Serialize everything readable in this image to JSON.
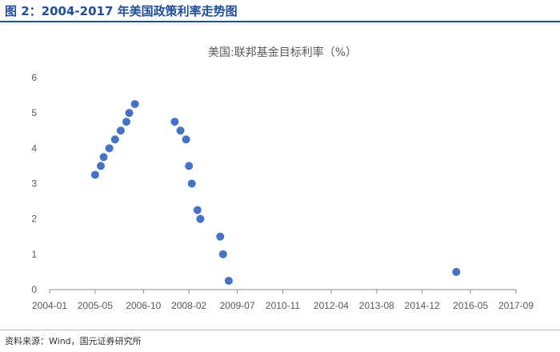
{
  "header": {
    "figure_title": "图 2：2004-2017 年美国政策利率走势图"
  },
  "footer": {
    "source": "资料来源：Wind，国元证券研究所"
  },
  "colors": {
    "accent": "#1f4e9c",
    "marker": "#4472c4",
    "axis": "#8c8c8c",
    "text": "#595959"
  },
  "chart_data": {
    "type": "scatter",
    "title": "美国:联邦基金目标利率（%）",
    "xlabel": "",
    "ylabel": "",
    "xlim": [
      "2004-01",
      "2017-09"
    ],
    "ylim": [
      0,
      6
    ],
    "grid": false,
    "legend": "none",
    "x_ticks": [
      "2004-01",
      "2005-05",
      "2006-10",
      "2008-02",
      "2009-07",
      "2010-11",
      "2012-04",
      "2013-08",
      "2014-12",
      "2016-05",
      "2017-09"
    ],
    "y_ticks": [
      0,
      1,
      2,
      3,
      4,
      5,
      6
    ],
    "series": [
      {
        "points": [
          {
            "x": "2005-05",
            "y": 3.25
          },
          {
            "x": "2005-07",
            "y": 3.5
          },
          {
            "x": "2005-08",
            "y": 3.75
          },
          {
            "x": "2005-10",
            "y": 4.0
          },
          {
            "x": "2005-12",
            "y": 4.25
          },
          {
            "x": "2006-02",
            "y": 4.5
          },
          {
            "x": "2006-04",
            "y": 4.75
          },
          {
            "x": "2006-05",
            "y": 5.0
          },
          {
            "x": "2006-07",
            "y": 5.25
          },
          {
            "x": "2007-09",
            "y": 4.75
          },
          {
            "x": "2007-11",
            "y": 4.5
          },
          {
            "x": "2008-01",
            "y": 4.25
          },
          {
            "x": "2008-02",
            "y": 3.5
          },
          {
            "x": "2008-03",
            "y": 3.0
          },
          {
            "x": "2008-05",
            "y": 2.25
          },
          {
            "x": "2008-06",
            "y": 2.0
          },
          {
            "x": "2009-01",
            "y": 1.5
          },
          {
            "x": "2009-02",
            "y": 1.0
          },
          {
            "x": "2009-04",
            "y": 0.25
          },
          {
            "x": "2015-12",
            "y": 0.5
          }
        ]
      }
    ]
  }
}
